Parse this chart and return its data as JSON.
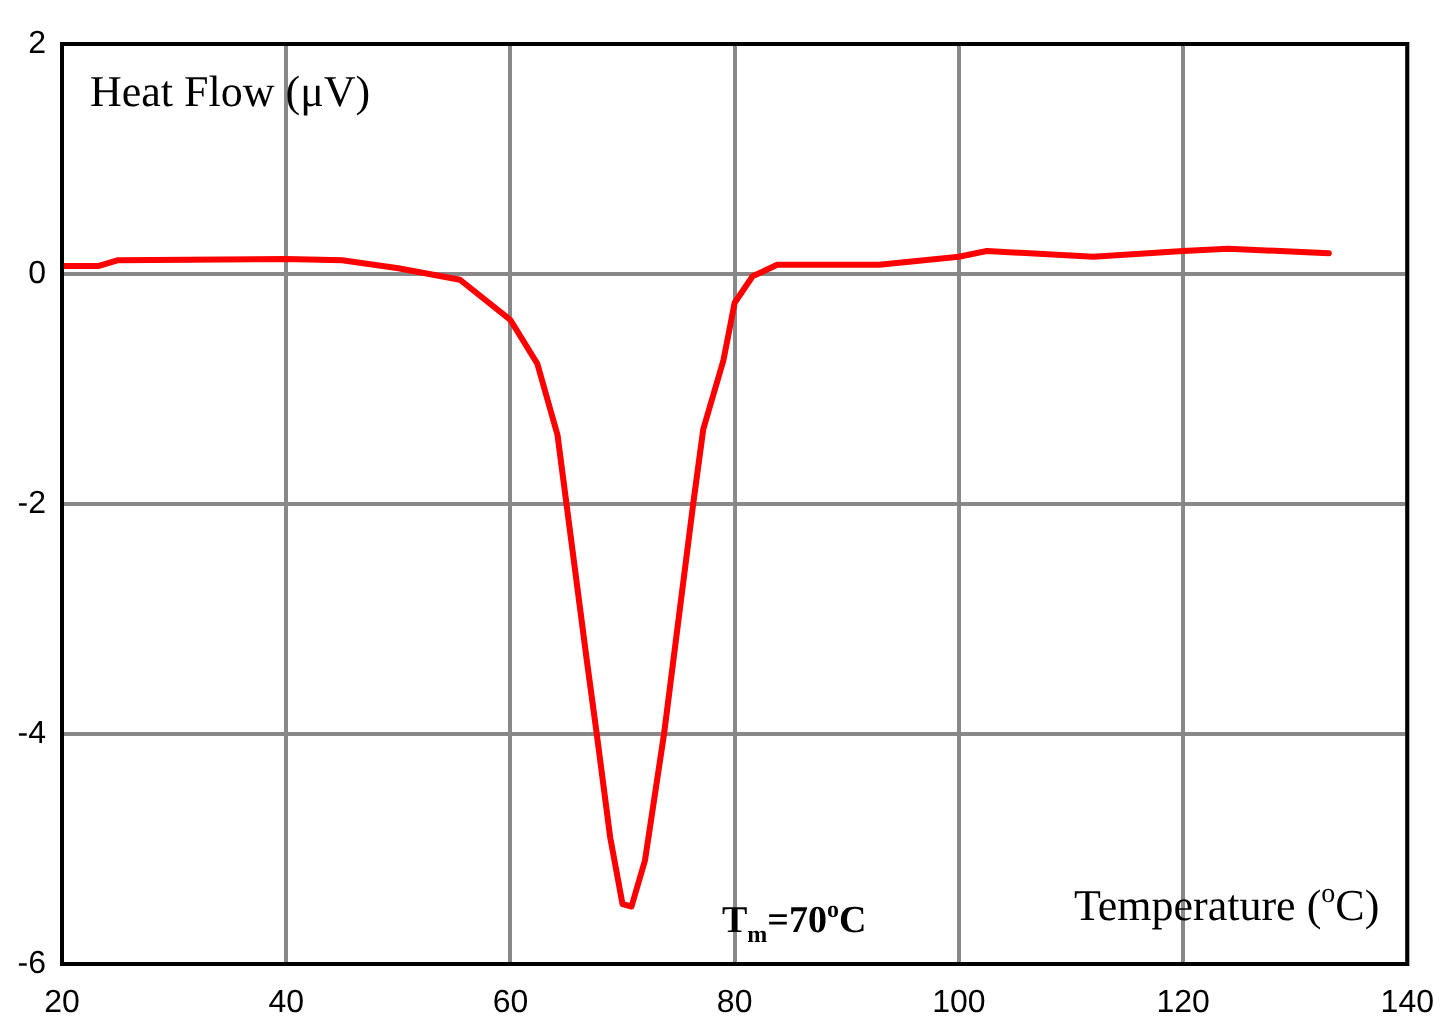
{
  "chart_data": {
    "type": "line",
    "xlabel": "Temperature ($^{o}$C)",
    "ylabel": "Heat Flow (μV)",
    "annotations": [
      "T$_{m}$=70$^{o}$C"
    ],
    "series": [
      {
        "color": "#ff0000",
        "x": [
          20,
          23.3,
          25,
          40,
          45,
          50,
          55.5,
          60,
          62.4,
          64.2,
          65,
          66.8,
          67.7,
          68.9,
          70,
          70.8,
          72,
          73.7,
          76.3,
          77.2,
          79,
          80,
          81.6,
          83.8,
          92.9,
          100,
          102.5,
          112,
          120,
          124,
          133
        ],
        "values": [
          0.07,
          0.07,
          0.12,
          0.13,
          0.12,
          0.05,
          -0.05,
          -0.4,
          -0.78,
          -1.4,
          -2,
          -3.35,
          -4,
          -4.9,
          -5.48,
          -5.5,
          -5.1,
          -4,
          -2,
          -1.35,
          -0.75,
          -0.25,
          -0.02,
          0.08,
          0.08,
          0.15,
          0.2,
          0.15,
          0.2,
          0.22,
          0.18
        ]
      }
    ],
    "xlim": [
      20,
      140
    ],
    "xticks": [
      20,
      40,
      60,
      80,
      100,
      120,
      140
    ],
    "ylim": [
      -6,
      2
    ],
    "yticks": [
      -6,
      -4,
      -2,
      0,
      2
    ],
    "grid": true,
    "legend": false,
    "marker": "none",
    "line_style": "solid"
  }
}
